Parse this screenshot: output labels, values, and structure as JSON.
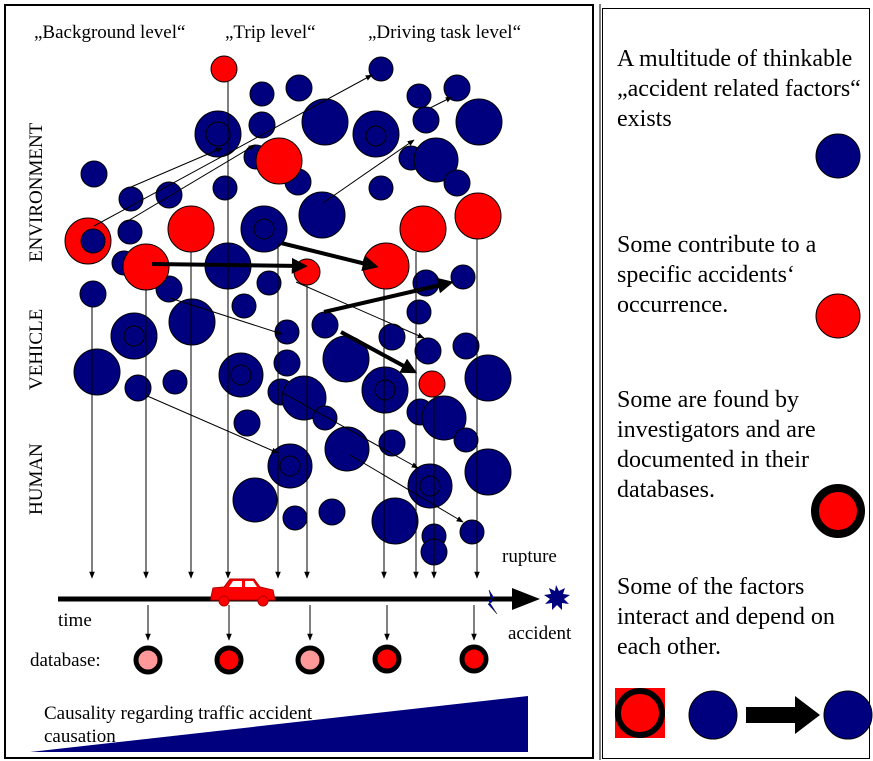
{
  "levels": {
    "background": "„Background level“",
    "trip": "„Trip level“",
    "driving": "„Driving task level“"
  },
  "categories": {
    "environment": "ENVIRONMENT",
    "vehicle": "VEHICLE",
    "human": "HUMAN"
  },
  "timeline": {
    "time": "time",
    "rupture": "rupture",
    "accident": "accident",
    "database": "database:"
  },
  "causality": "Causality regarding traffic accident causation",
  "legend": {
    "multitude": "A multitude of thinkable „accident related factors“ exists",
    "contribute": "Some contribute to a specific accidents‘ occurrence.",
    "found": "Some are found by investigators and are documented in their databases.",
    "interact": "Some of the factors interact and depend on each other."
  },
  "colors": {
    "blue": "#00007f",
    "red": "#ff0000",
    "pink": "#ff9999",
    "black": "#000000"
  }
}
